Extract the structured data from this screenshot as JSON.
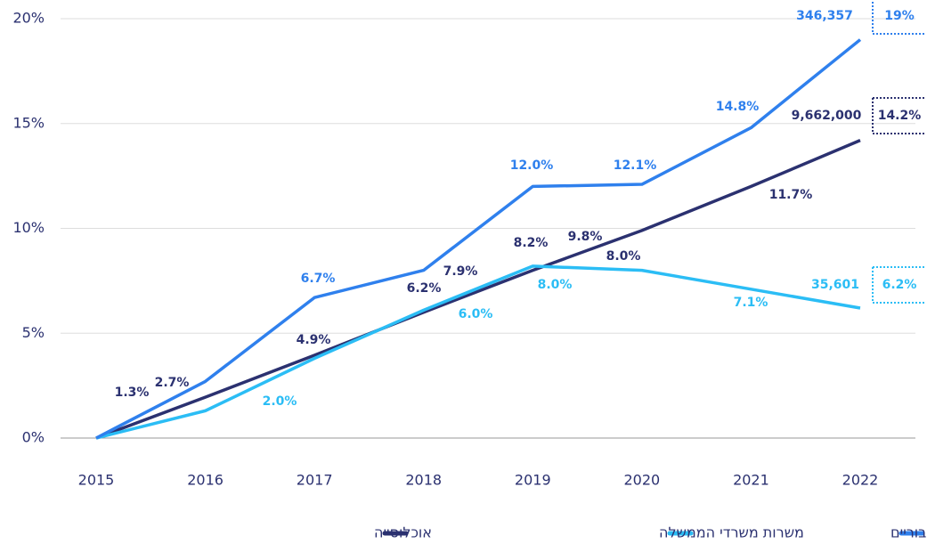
{
  "chart_data": {
    "type": "line",
    "x": [
      2015,
      2016,
      2017,
      2018,
      2019,
      2020,
      2021,
      2022
    ],
    "xticks": [
      2015,
      2016,
      2017,
      2018,
      2019,
      2020,
      2021,
      2022
    ],
    "xlim": [
      2015,
      2022
    ],
    "ylim": [
      0,
      20
    ],
    "yticks": [
      {
        "value": 0,
        "label": "0%"
      },
      {
        "value": 5,
        "label": "5%"
      },
      {
        "value": 10,
        "label": "10%"
      },
      {
        "value": 15,
        "label": "15%"
      },
      {
        "value": 20,
        "label": "20%"
      }
    ],
    "grid": true,
    "legend": "bottom",
    "series": [
      {
        "name": "משרות גופים ציבוריים",
        "color": "#2f80ed",
        "values": [
          0,
          2.7,
          6.7,
          8.0,
          12.0,
          12.1,
          14.8,
          19
        ]
      },
      {
        "name": "משרות משרדי הממשלה",
        "color": "#2bbdf5",
        "values": [
          0,
          1.3,
          3.8,
          6.1,
          8.2,
          8.0,
          7.1,
          6.2
        ]
      },
      {
        "name": "אוכלוסייה",
        "color": "#2b3170",
        "values": [
          0,
          1.95,
          3.95,
          6.0,
          8.0,
          9.9,
          12.0,
          14.2
        ]
      }
    ],
    "annotations": [
      "1.3%",
      "2.7%",
      "6.7%",
      "4.9%",
      "2.0%",
      "6.2%",
      "7.9%",
      "6.0%",
      "12.0%",
      "8.2%",
      "8.0%",
      "12.1%",
      "9.8%",
      "8.0%",
      "14.8%",
      "7.1%",
      "11.7%",
      "346,357",
      "9,662,000",
      "35,601"
    ],
    "end_labels": [
      "19%",
      "14.2%",
      "6.2%"
    ]
  }
}
